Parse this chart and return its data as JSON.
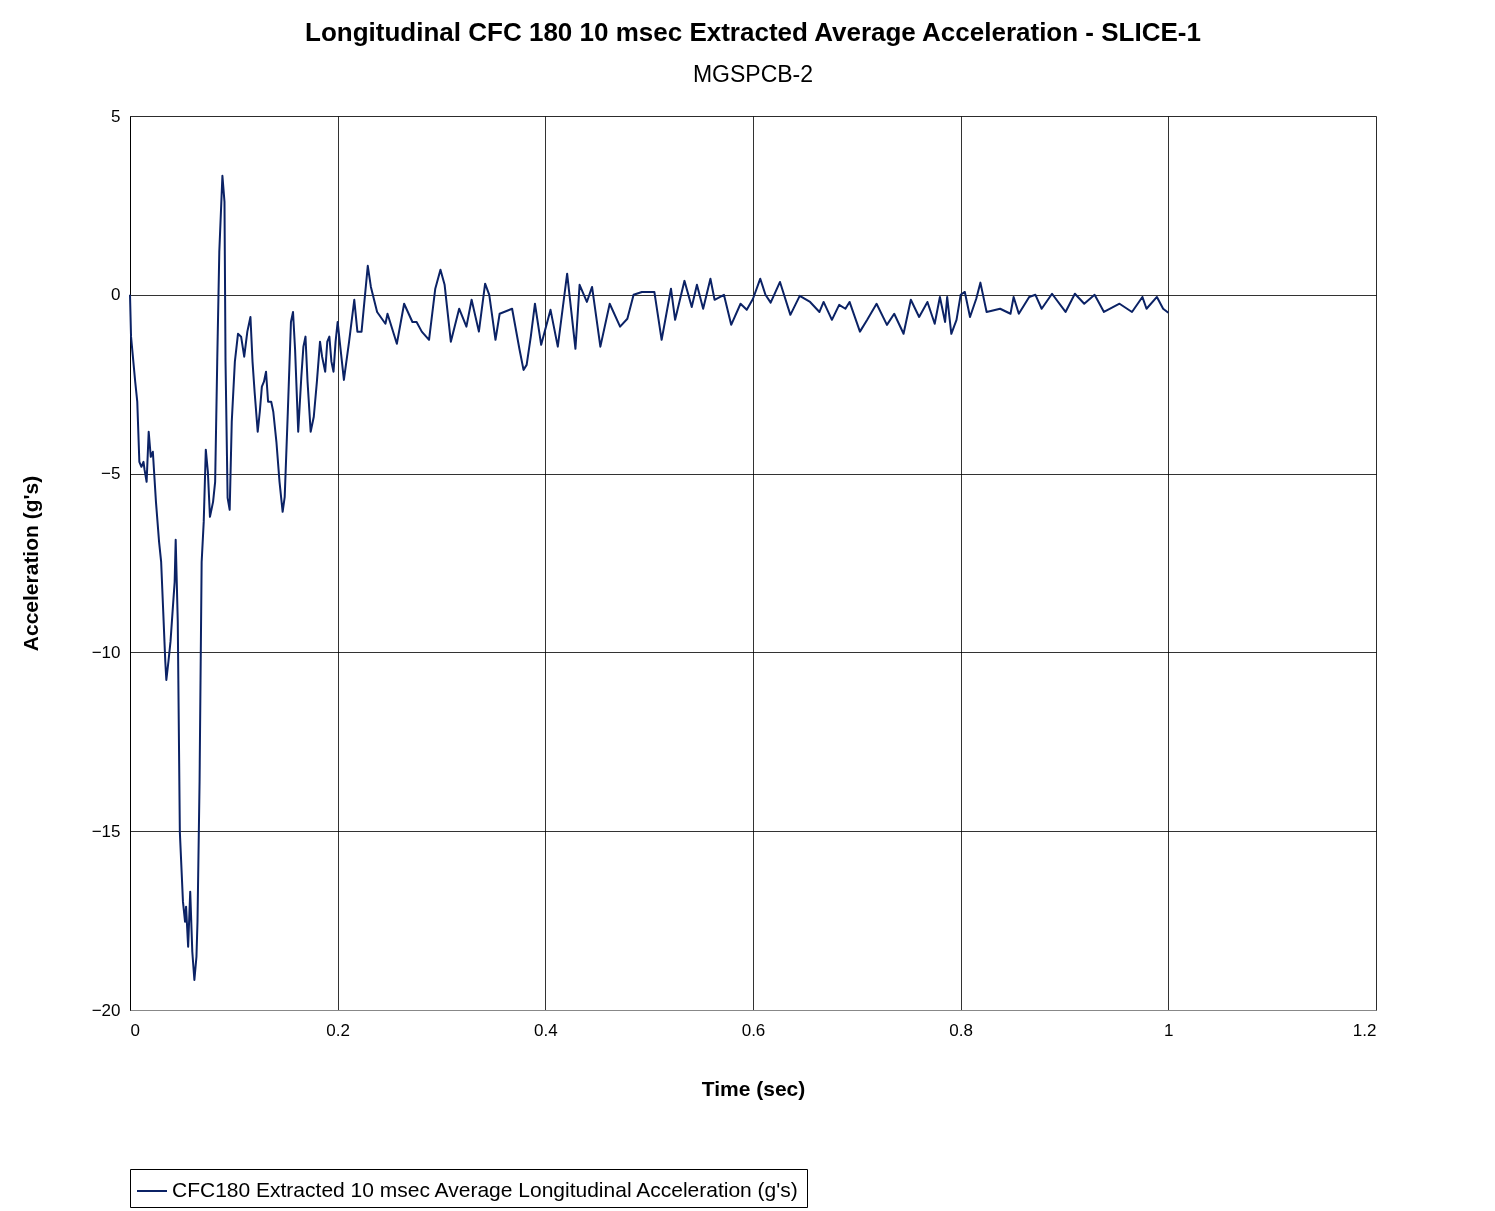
{
  "chart_data": {
    "type": "line",
    "title": "Longitudinal CFC 180 10 msec Extracted Average Acceleration - SLICE-1",
    "subtitle": "MGSPCB-2",
    "xlabel": "Time (sec)",
    "ylabel": "Acceleration (g's)",
    "xlim": [
      0,
      1.2
    ],
    "xticks": [
      0,
      0.2,
      0.4,
      0.6,
      0.8,
      1,
      1.2
    ],
    "ylim": [
      -20,
      5
    ],
    "yticks": [
      -20,
      -15,
      -10,
      -5,
      0,
      5
    ],
    "grid": true,
    "legend": "bottom",
    "marker": "none",
    "line_style": "solid",
    "series": [
      {
        "name": "CFC180 Extracted 10 msec Average Longitudinal Acceleration (g's)",
        "color": "#0b2265",
        "x": [
          0,
          0.001,
          0.005,
          0.007,
          0.009,
          0.011,
          0.013,
          0.014,
          0.016,
          0.018,
          0.02,
          0.022,
          0.025,
          0.028,
          0.03,
          0.032,
          0.034,
          0.035,
          0.037,
          0.039,
          0.041,
          0.043,
          0.044,
          0.046,
          0.048,
          0.051,
          0.053,
          0.054,
          0.056,
          0.058,
          0.06,
          0.062,
          0.064,
          0.065,
          0.067,
          0.069,
          0.071,
          0.073,
          0.075,
          0.077,
          0.08,
          0.082,
          0.084,
          0.086,
          0.089,
          0.091,
          0.092,
          0.094,
          0.096,
          0.098,
          0.101,
          0.104,
          0.107,
          0.11,
          0.113,
          0.116,
          0.118,
          0.12,
          0.123,
          0.125,
          0.127,
          0.129,
          0.131,
          0.133,
          0.136,
          0.138,
          0.141,
          0.144,
          0.147,
          0.149,
          0.152,
          0.155,
          0.157,
          0.159,
          0.162,
          0.165,
          0.167,
          0.169,
          0.171,
          0.174,
          0.177,
          0.18,
          0.183,
          0.185,
          0.188,
          0.19,
          0.192,
          0.194,
          0.196,
          0.198,
          0.2,
          0.202,
          0.206,
          0.211,
          0.216,
          0.219,
          0.223,
          0.229,
          0.232,
          0.238,
          0.246,
          0.248,
          0.257,
          0.264,
          0.272,
          0.276,
          0.281,
          0.288,
          0.294,
          0.299,
          0.303,
          0.309,
          0.317,
          0.324,
          0.329,
          0.336,
          0.342,
          0.346,
          0.352,
          0.356,
          0.368,
          0.375,
          0.379,
          0.382,
          0.386,
          0.39,
          0.396,
          0.405,
          0.412,
          0.421,
          0.429,
          0.433,
          0.44,
          0.445,
          0.453,
          0.462,
          0.472,
          0.479,
          0.485,
          0.493,
          0.505,
          0.512,
          0.521,
          0.525,
          0.534,
          0.541,
          0.546,
          0.552,
          0.559,
          0.563,
          0.572,
          0.579,
          0.588,
          0.594,
          0.6,
          0.607,
          0.612,
          0.617,
          0.626,
          0.636,
          0.645,
          0.655,
          0.664,
          0.668,
          0.676,
          0.683,
          0.689,
          0.693,
          0.703,
          0.71,
          0.719,
          0.729,
          0.736,
          0.745,
          0.752,
          0.76,
          0.768,
          0.775,
          0.78,
          0.785,
          0.787,
          0.791,
          0.796,
          0.8,
          0.804,
          0.809,
          0.815,
          0.819,
          0.825,
          0.838,
          0.848,
          0.851,
          0.856,
          0.866,
          0.872,
          0.878,
          0.888,
          0.901,
          0.91,
          0.919,
          0.929,
          0.938,
          0.953,
          0.965,
          0.975,
          0.979,
          0.989,
          0.995,
          1.0
        ],
        "values": [
          0,
          -1.17,
          -2.43,
          -2.99,
          -4.67,
          -4.81,
          -4.67,
          -4.89,
          -5.23,
          -3.83,
          -4.53,
          -4.39,
          -5.79,
          -6.91,
          -7.47,
          -8.86,
          -10.26,
          -10.77,
          -10.26,
          -9.7,
          -8.86,
          -8.03,
          -6.85,
          -9.14,
          -15.02,
          -16.97,
          -17.53,
          -17.11,
          -18.23,
          -16.69,
          -18.37,
          -19.16,
          -18.51,
          -17.53,
          -13.62,
          -7.47,
          -6.35,
          -4.33,
          -4.95,
          -6.21,
          -5.79,
          -5.23,
          -1.87,
          1.2,
          3.33,
          2.6,
          -1.87,
          -5.68,
          -6.01,
          -3.55,
          -1.87,
          -1.09,
          -1.17,
          -1.73,
          -1.03,
          -0.62,
          -1.87,
          -2.71,
          -3.83,
          -3.27,
          -2.57,
          -2.43,
          -2.15,
          -2.99,
          -2.99,
          -3.27,
          -4.11,
          -5.23,
          -6.07,
          -5.65,
          -3.27,
          -0.76,
          -0.48,
          -1.54,
          -3.83,
          -2.29,
          -1.45,
          -1.17,
          -2.43,
          -3.83,
          -3.41,
          -2.43,
          -1.31,
          -1.73,
          -2.15,
          -1.31,
          -1.17,
          -1.87,
          -2.15,
          -1.31,
          -0.76,
          -1.31,
          -2.38,
          -1.31,
          -0.14,
          -1.03,
          -1.03,
          0.81,
          0.22,
          -0.48,
          -0.81,
          -0.53,
          -1.37,
          -0.25,
          -0.76,
          -0.76,
          -1.03,
          -1.26,
          0.17,
          0.7,
          0.28,
          -1.31,
          -0.39,
          -0.89,
          -0.14,
          -1.03,
          0.31,
          0,
          -1.26,
          -0.53,
          -0.39,
          -1.51,
          -2.1,
          -1.96,
          -1.17,
          -0.25,
          -1.4,
          -0.42,
          -1.45,
          0.59,
          -1.51,
          0.28,
          -0.2,
          0.22,
          -1.45,
          -0.25,
          -0.89,
          -0.67,
          0,
          0.08,
          0.08,
          -1.26,
          0.17,
          -0.7,
          0.39,
          -0.34,
          0.28,
          -0.39,
          0.45,
          -0.14,
          0,
          -0.84,
          -0.25,
          -0.42,
          -0.11,
          0.45,
          0,
          -0.22,
          0.36,
          -0.56,
          -0.03,
          -0.2,
          -0.48,
          -0.2,
          -0.7,
          -0.28,
          -0.39,
          -0.2,
          -1.03,
          -0.7,
          -0.25,
          -0.84,
          -0.53,
          -1.09,
          -0.14,
          -0.62,
          -0.2,
          -0.81,
          -0.06,
          -0.76,
          -0.06,
          -1.09,
          -0.7,
          0,
          0.08,
          -0.62,
          -0.11,
          0.34,
          -0.48,
          -0.39,
          -0.53,
          -0.06,
          -0.53,
          -0.06,
          0,
          -0.39,
          0.03,
          -0.48,
          0.03,
          -0.25,
          0,
          -0.48,
          -0.25,
          -0.48,
          -0.06,
          -0.39,
          -0.06,
          -0.39,
          -0.5
        ]
      }
    ]
  }
}
